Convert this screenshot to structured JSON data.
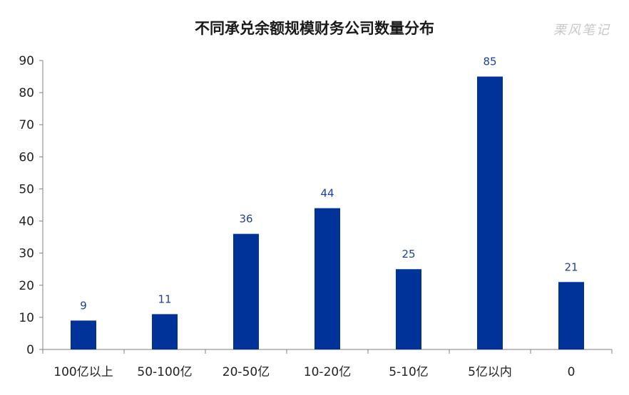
{
  "chart_data": {
    "type": "bar",
    "title": "不同承兑余额规模财务公司数量分布",
    "categories": [
      "100亿以上",
      "50-100亿",
      "20-50亿",
      "10-20亿",
      "5-10亿",
      "5亿以内",
      "0"
    ],
    "values": [
      9,
      11,
      36,
      44,
      25,
      85,
      21
    ],
    "xlabel": "",
    "ylabel": "",
    "ylim": [
      0,
      90
    ],
    "yticks": [
      0,
      10,
      20,
      30,
      40,
      50,
      60,
      70,
      80,
      90
    ],
    "grid": false,
    "legend": "none",
    "bar_color": "#003399",
    "label_color": "#1f3f9f"
  },
  "watermark": "栗风笔记"
}
